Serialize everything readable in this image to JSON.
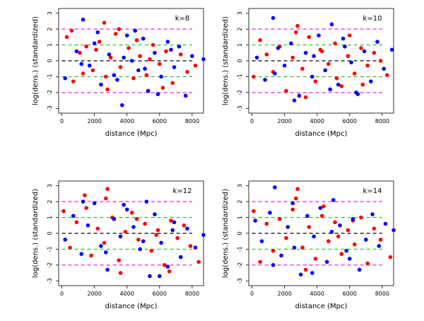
{
  "chart_data": [
    {
      "type": "scatter",
      "panel_label": "k=8",
      "xlabel": "distance (Mpc)",
      "ylabel": "log(dens.) (standardized)",
      "xlim": [
        -200,
        8700
      ],
      "ylim": [
        -3.3,
        3.3
      ],
      "xticks": [
        0,
        2000,
        4000,
        6000,
        8000
      ],
      "yticks": [
        -3,
        -2,
        -1,
        0,
        1,
        2,
        3
      ],
      "reference_lines": [
        {
          "y": 0,
          "color": "#000000",
          "style": "dashed"
        },
        {
          "y": 1,
          "color": "#22bb22",
          "style": "dashed"
        },
        {
          "y": -1,
          "color": "#22bb22",
          "style": "dashed"
        },
        {
          "y": 2,
          "color": "#ee22ee",
          "style": "dashed"
        },
        {
          "y": -2,
          "color": "#ee22ee",
          "style": "dashed"
        }
      ],
      "series": [
        {
          "color": "#ff0000",
          "x": [
            300,
            700,
            1100,
            1500,
            1900,
            2300,
            2600,
            2800,
            3000,
            3300,
            3600,
            4100,
            4400,
            4800,
            5200,
            5600,
            6000,
            6400,
            6800,
            7300,
            7700,
            8200,
            600,
            1300,
            2100,
            2700,
            3500,
            4600,
            5400,
            6200
          ],
          "y": [
            1.5,
            -1.3,
            0.5,
            0.9,
            -0.6,
            1.2,
            2.4,
            -1.8,
            0.2,
            1.7,
            -0.4,
            0.8,
            -1.1,
            0.3,
            -0.9,
            1.0,
            -0.2,
            0.6,
            -1.4,
            0.4,
            -0.7,
            -0.3,
            1.9,
            -0.8,
            0.7,
            -1.0,
            2.0,
            1.3,
            0.1,
            -1.7
          ]
        },
        {
          "color": "#0000ff",
          "x": [
            200,
            900,
            1300,
            1700,
            2000,
            2400,
            2900,
            3200,
            3700,
            4000,
            4300,
            4700,
            5000,
            5300,
            5700,
            6100,
            6500,
            6900,
            7200,
            7600,
            8000,
            8700,
            1200,
            2200,
            3400,
            3800,
            4500,
            5100,
            5900,
            6700
          ],
          "y": [
            -1.1,
            0.6,
            2.6,
            -0.3,
            1.1,
            -1.5,
            0.4,
            -0.9,
            -2.8,
            1.6,
            0.0,
            -0.6,
            1.4,
            -1.9,
            0.5,
            -1.0,
            1.2,
            -0.4,
            0.9,
            -2.2,
            0.3,
            0.1,
            -0.2,
            1.8,
            -1.2,
            0.2,
            1.9,
            -0.5,
            -2.1,
            0.7
          ]
        }
      ]
    },
    {
      "type": "scatter",
      "panel_label": "k=10",
      "xlabel": "distance (Mpc)",
      "ylabel": "log(dens.) (standardized)",
      "xlim": [
        -200,
        8700
      ],
      "ylim": [
        -3.3,
        3.3
      ],
      "xticks": [
        0,
        2000,
        4000,
        6000,
        8000
      ],
      "yticks": [
        -3,
        -2,
        -1,
        0,
        1,
        2,
        3
      ],
      "reference_lines": [
        {
          "y": 0,
          "color": "#000000",
          "style": "dashed"
        },
        {
          "y": 1,
          "color": "#22bb22",
          "style": "dashed"
        },
        {
          "y": -1,
          "color": "#22bb22",
          "style": "dashed"
        },
        {
          "y": 2,
          "color": "#ee22ee",
          "style": "dashed"
        },
        {
          "y": -2,
          "color": "#ee22ee",
          "style": "dashed"
        }
      ],
      "series": [
        {
          "color": "#ff0000",
          "x": [
            100,
            500,
            900,
            1300,
            1700,
            2100,
            2500,
            2800,
            3100,
            3500,
            3900,
            4300,
            4700,
            5100,
            5500,
            5900,
            6300,
            6700,
            7100,
            7500,
            7900,
            8300,
            2700,
            3300,
            4200,
            5200,
            6000,
            6800
          ],
          "y": [
            -1.0,
            1.3,
            0.4,
            -0.7,
            0.9,
            -1.9,
            0.2,
            2.2,
            -0.5,
            1.5,
            -1.3,
            0.6,
            -0.2,
            1.1,
            -1.6,
            0.3,
            -0.8,
            0.8,
            -0.3,
            0.5,
            0.0,
            -0.9,
            1.8,
            -2.3,
            0.7,
            -1.1,
            1.6,
            -1.5
          ]
        },
        {
          "color": "#0000ff",
          "x": [
            300,
            800,
            1300,
            1600,
            2000,
            2400,
            2900,
            3300,
            3700,
            4100,
            4500,
            4900,
            5300,
            5700,
            6100,
            6500,
            6900,
            7300,
            7700,
            8100,
            8600,
            1400,
            2600,
            3800,
            4800,
            5600,
            6400
          ],
          "y": [
            0.2,
            -1.2,
            2.7,
            0.8,
            -0.3,
            1.1,
            -2.2,
            0.5,
            -1.0,
            1.6,
            -0.6,
            2.3,
            -1.5,
            0.9,
            -0.1,
            -2.1,
            0.6,
            -1.3,
            1.2,
            -0.5,
            0.7,
            -0.8,
            -2.5,
            0.3,
            -1.8,
            1.4,
            -2.0
          ]
        }
      ]
    },
    {
      "type": "scatter",
      "panel_label": "k=12",
      "xlabel": "distance (Mpc)",
      "ylabel": "log(dens.) (standardized)",
      "xlim": [
        -200,
        8700
      ],
      "ylim": [
        -3.3,
        3.3
      ],
      "xticks": [
        0,
        2000,
        4000,
        6000,
        8000
      ],
      "yticks": [
        -3,
        -2,
        -1,
        0,
        1,
        2,
        3
      ],
      "reference_lines": [
        {
          "y": 0,
          "color": "#000000",
          "style": "dashed"
        },
        {
          "y": 1,
          "color": "#22bb22",
          "style": "dashed"
        },
        {
          "y": -1,
          "color": "#22bb22",
          "style": "dashed"
        },
        {
          "y": 2,
          "color": "#ee22ee",
          "style": "dashed"
        },
        {
          "y": -2,
          "color": "#ee22ee",
          "style": "dashed"
        }
      ],
      "series": [
        {
          "color": "#ff0000",
          "x": [
            100,
            500,
            900,
            1400,
            1800,
            2200,
            2600,
            2800,
            3100,
            3500,
            3900,
            4300,
            4700,
            5100,
            5500,
            5900,
            6300,
            6700,
            7100,
            7500,
            7900,
            8400,
            1500,
            2700,
            3600,
            4600,
            5800,
            6600
          ],
          "y": [
            1.4,
            -0.9,
            0.7,
            2.4,
            -1.4,
            0.3,
            -0.6,
            2.8,
            1.0,
            -1.7,
            0.1,
            1.3,
            -0.4,
            0.6,
            -1.1,
            0.2,
            -2.0,
            0.8,
            -0.3,
            0.5,
            -0.8,
            -1.8,
            1.6,
            2.2,
            -2.5,
            0.9,
            -0.1,
            -2.4
          ]
        },
        {
          "color": "#0000ff",
          "x": [
            200,
            700,
            1200,
            1600,
            2000,
            2400,
            2800,
            3200,
            3600,
            4000,
            4400,
            4800,
            5200,
            5400,
            5700,
            6100,
            6500,
            6900,
            7300,
            7700,
            8200,
            8700,
            1300,
            2700,
            3800,
            5000,
            6000,
            6800
          ],
          "y": [
            -0.4,
            1.1,
            -1.3,
            0.5,
            1.9,
            -0.8,
            -2.3,
            0.9,
            -0.2,
            1.5,
            0.4,
            -1.0,
            2.0,
            -2.7,
            1.2,
            -0.6,
            -2.1,
            0.7,
            -1.5,
            0.3,
            -0.9,
            -0.1,
            2.0,
            -1.2,
            1.8,
            -0.5,
            -2.7,
            0.2
          ]
        }
      ]
    },
    {
      "type": "scatter",
      "panel_label": "k=14",
      "xlabel": "distance (Mpc)",
      "ylabel": "log(dens.) (standardized)",
      "xlim": [
        -200,
        8700
      ],
      "ylim": [
        -3.3,
        3.3
      ],
      "xticks": [
        0,
        2000,
        4000,
        6000,
        8000
      ],
      "yticks": [
        -3,
        -2,
        -1,
        0,
        1,
        2,
        3
      ],
      "reference_lines": [
        {
          "y": 0,
          "color": "#000000",
          "style": "dashed"
        },
        {
          "y": 1,
          "color": "#22bb22",
          "style": "dashed"
        },
        {
          "y": -1,
          "color": "#22bb22",
          "style": "dashed"
        },
        {
          "y": 2,
          "color": "#ee22ee",
          "style": "dashed"
        },
        {
          "y": -2,
          "color": "#ee22ee",
          "style": "dashed"
        }
      ],
      "series": [
        {
          "color": "#ff0000",
          "x": [
            100,
            500,
            900,
            1300,
            1700,
            2100,
            2500,
            2800,
            3100,
            3500,
            3900,
            4300,
            4700,
            5100,
            5500,
            5900,
            6300,
            6700,
            7100,
            7500,
            7900,
            8500,
            2700,
            3300,
            4400,
            5300,
            6200
          ],
          "y": [
            1.4,
            -1.8,
            0.6,
            -1.1,
            0.9,
            -0.3,
            1.5,
            2.8,
            -0.9,
            0.4,
            -1.6,
            1.1,
            -0.5,
            0.7,
            -1.3,
            0.2,
            -0.7,
            1.0,
            -1.9,
            0.3,
            -0.4,
            -1.5,
            2.2,
            -2.3,
            1.7,
            -0.2,
            0.8
          ]
        },
        {
          "color": "#0000ff",
          "x": [
            200,
            600,
            1100,
            1400,
            1800,
            2200,
            2600,
            3000,
            3400,
            3800,
            4200,
            4600,
            5000,
            5400,
            5800,
            6200,
            6600,
            7000,
            7400,
            7800,
            8200,
            8700,
            1300,
            2500,
            3700,
            4900,
            6000
          ],
          "y": [
            0.8,
            -0.5,
            1.3,
            2.9,
            -1.4,
            0.4,
            -0.9,
            -2.6,
            1.1,
            -0.2,
            1.6,
            -1.8,
            2.1,
            0.5,
            -1.1,
            0.9,
            -2.3,
            -0.4,
            1.2,
            -0.8,
            0.6,
            0.2,
            -2.0,
            1.9,
            -2.5,
            0.1,
            -1.6
          ]
        }
      ]
    }
  ]
}
